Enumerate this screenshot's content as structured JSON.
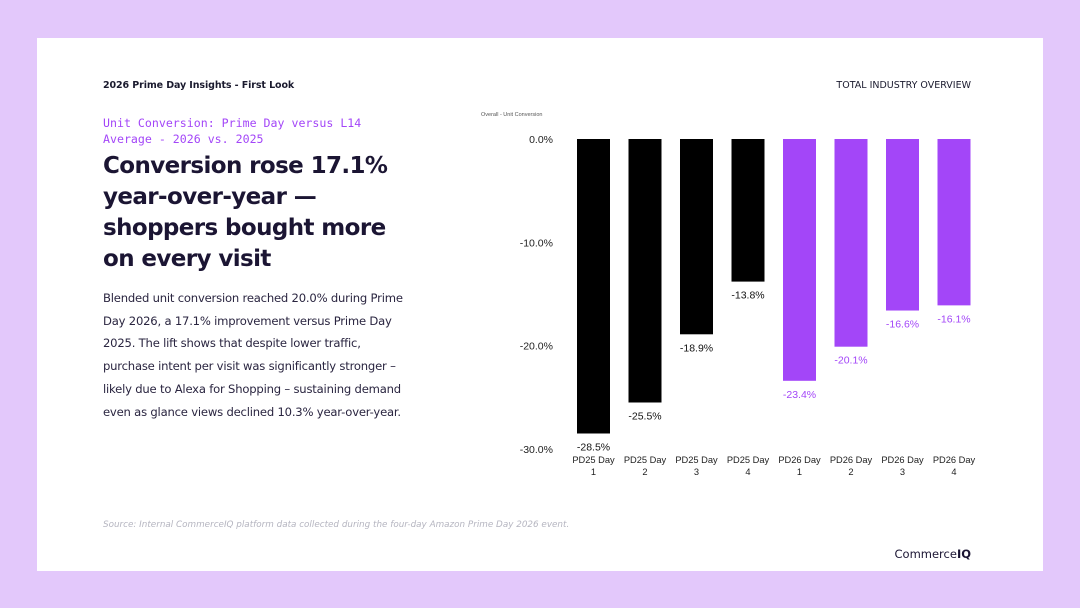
{
  "header": {
    "left_title": "2026 Prime Day Insights - First Look",
    "right_title": "TOTAL INDUSTRY OVERVIEW"
  },
  "subtitle": "Unit Conversion: Prime Day versus L14 Average - 2026 vs. 2025",
  "headline": "Conversion rose 17.1% year-over-year — shoppers bought more on every visit",
  "body": "Blended unit conversion reached 20.0% during Prime Day 2026, a 17.1% improvement versus Prime Day 2025. The lift shows that despite lower traffic, purchase intent per visit was significantly stronger – likely due to Alexa for Shopping – sustaining demand even as glance views declined 10.3% year-over-year.",
  "source": "Source: Internal CommerceIQ platform data collected during the four-day Amazon Prime Day 2026 event.",
  "logo": {
    "part1": "Commerce",
    "part2": "IQ"
  },
  "colors": {
    "pd25": "#000000",
    "pd26": "#a346f8",
    "accent": "#a346f8",
    "background": "#e3c8fb"
  },
  "chart_data": {
    "type": "bar",
    "title": "Overall - Unit Conversion",
    "categories": [
      [
        "PD25 Day",
        "1"
      ],
      [
        "PD25 Day",
        "2"
      ],
      [
        "PD25 Day",
        "3"
      ],
      [
        "PD25 Day",
        "4"
      ],
      [
        "PD26 Day",
        "1"
      ],
      [
        "PD26 Day",
        "2"
      ],
      [
        "PD26 Day",
        "3"
      ],
      [
        "PD26 Day",
        "4"
      ]
    ],
    "values": [
      -28.5,
      -25.5,
      -18.9,
      -13.8,
      -23.4,
      -20.1,
      -16.6,
      -16.1
    ],
    "labels": [
      "-28.5%",
      "-25.5%",
      "-18.9%",
      "-13.8%",
      "-23.4%",
      "-20.1%",
      "-16.6%",
      "-16.1%"
    ],
    "groups": [
      "pd25",
      "pd25",
      "pd25",
      "pd25",
      "pd26",
      "pd26",
      "pd26",
      "pd26"
    ],
    "yticks": [
      0,
      -10,
      -20,
      -30
    ],
    "ytick_labels": [
      "0.0%",
      "-10.0%",
      "-20.0%",
      "-30.0%"
    ],
    "ylim": [
      -30,
      0
    ],
    "grid": false,
    "legend": "none"
  }
}
